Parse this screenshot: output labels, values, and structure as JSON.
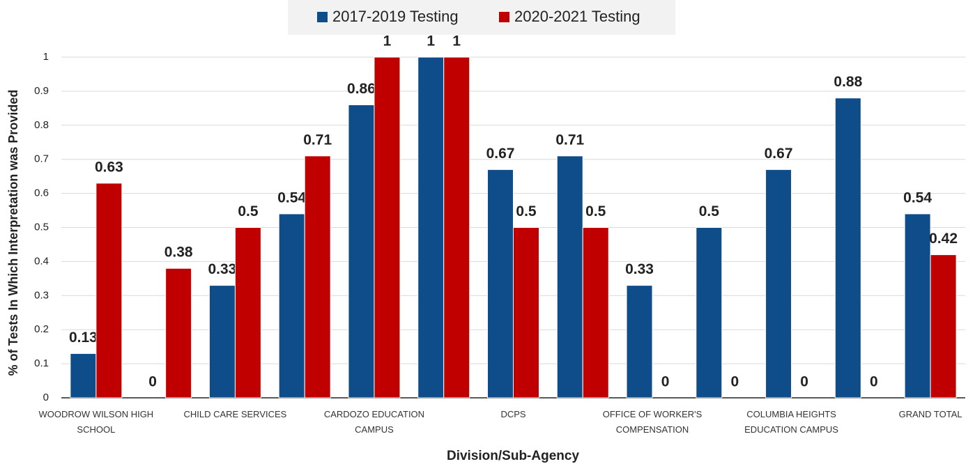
{
  "chart_data": {
    "type": "bar",
    "x_label": "Division/Sub-Agency",
    "y_label": "% of Tests In Which Interpretation was Provided",
    "categories": [
      "WOODROW WILSON HIGH SCHOOL",
      null,
      "CHILD CARE SERVICES",
      null,
      "CARDOZO EDUCATION CAMPUS",
      null,
      "DCPS",
      null,
      "OFFICE OF WORKER'S COMPENSATION",
      null,
      "COLUMBIA HEIGHTS EDUCATION CAMPUS",
      null,
      "GRAND TOTAL"
    ],
    "series": [
      {
        "name": "2017-2019 Testing",
        "color": "#0f4c8a",
        "values": [
          0.13,
          0,
          0.33,
          0.54,
          0.86,
          1,
          0.67,
          0.71,
          0.33,
          0.5,
          0.67,
          0.88,
          0.54
        ]
      },
      {
        "name": "2020-2021 Testing",
        "color": "#c00000",
        "values": [
          0.63,
          0.38,
          0.5,
          0.71,
          1,
          1,
          0.5,
          0.5,
          0,
          0,
          0,
          0,
          0.42
        ]
      }
    ],
    "ylim": [
      0,
      1
    ],
    "yticks": [
      0,
      0.1,
      0.2,
      0.3,
      0.4,
      0.5,
      0.6,
      0.7,
      0.8,
      0.9,
      1
    ],
    "grid": true,
    "legend": "top"
  }
}
